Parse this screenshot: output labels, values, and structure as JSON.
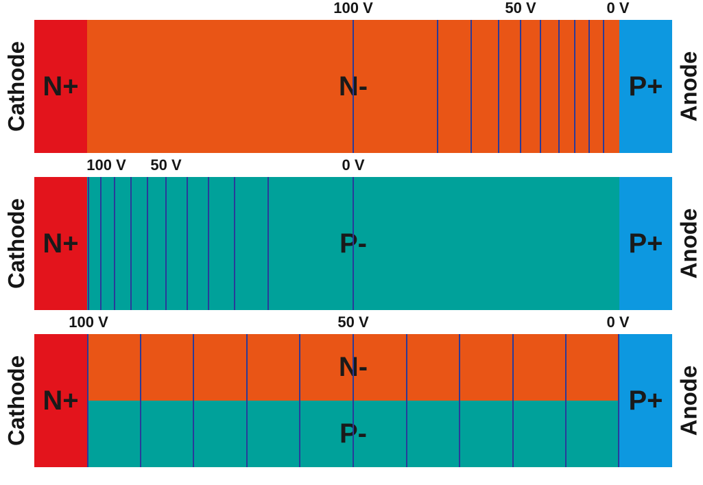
{
  "colors": {
    "n_plus": "#e3141c",
    "n_minus": "#e95516",
    "p_minus": "#00a19a",
    "p_plus": "#0d98e0",
    "equipotential": "#2a3a9a"
  },
  "panels": [
    {
      "cathode": "Cathode",
      "anode": "Anode",
      "left_region": "N+",
      "right_region": "P+",
      "drift_layers": [
        {
          "label": "N-",
          "color": "n_minus"
        }
      ],
      "voltage_labels": [
        {
          "text": "100 V",
          "pos": 0.5
        },
        {
          "text": "50 V",
          "pos": 0.815
        },
        {
          "text": "0 V",
          "pos": 0.997
        }
      ],
      "equipotential_lines": [
        0.5,
        0.659,
        0.722,
        0.773,
        0.815,
        0.852,
        0.886,
        0.916,
        0.943,
        0.97
      ]
    },
    {
      "cathode": "Cathode",
      "anode": "Anode",
      "left_region": "N+",
      "right_region": "P+",
      "drift_layers": [
        {
          "label": "P-",
          "color": "p_minus"
        }
      ],
      "voltage_labels": [
        {
          "text": "100 V",
          "pos": 0.036
        },
        {
          "text": "50 V",
          "pos": 0.148
        },
        {
          "text": "0 V",
          "pos": 0.5
        }
      ],
      "equipotential_lines": [
        0.003,
        0.026,
        0.052,
        0.082,
        0.114,
        0.148,
        0.188,
        0.228,
        0.277,
        0.34,
        0.5
      ]
    },
    {
      "cathode": "Cathode",
      "anode": "Anode",
      "left_region": "N+",
      "right_region": "P+",
      "drift_layers": [
        {
          "label": "N-",
          "color": "n_minus"
        },
        {
          "label": "P-",
          "color": "p_minus"
        }
      ],
      "voltage_labels": [
        {
          "text": "100 V",
          "pos": 0.003
        },
        {
          "text": "50 V",
          "pos": 0.5
        },
        {
          "text": "0 V",
          "pos": 0.997
        }
      ],
      "equipotential_lines": [
        0.0,
        0.1,
        0.2,
        0.3,
        0.4,
        0.5,
        0.6,
        0.7,
        0.8,
        0.9,
        1.0
      ]
    }
  ]
}
